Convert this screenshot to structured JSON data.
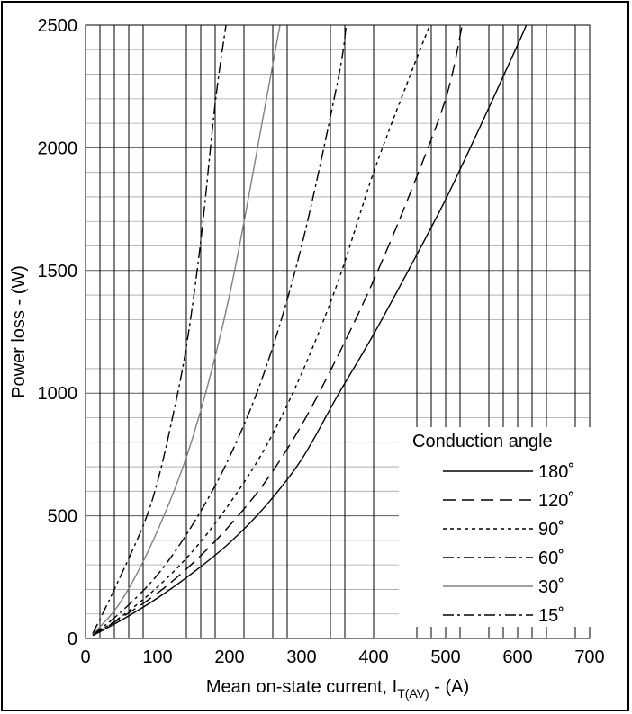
{
  "chart_data": {
    "type": "line",
    "xlabel_main": "Mean on-state current, I",
    "xlabel_sub": "T(AV)",
    "xlabel_unit": " - (A)",
    "ylabel": "Power loss - (W)",
    "xlim": [
      0,
      700
    ],
    "ylim": [
      0,
      2500
    ],
    "xticks": [
      0,
      100,
      200,
      300,
      400,
      500,
      600,
      700
    ],
    "yticks": [
      0,
      500,
      1000,
      1500,
      2000,
      2500
    ],
    "x_gridlines": [
      20,
      40,
      60,
      80,
      140,
      160,
      180,
      220,
      260,
      280,
      340,
      360,
      400,
      460,
      480,
      500,
      520,
      560,
      580,
      600,
      620,
      640,
      680
    ],
    "y_gridlines": [
      100,
      200,
      300,
      400,
      600,
      700,
      800,
      900,
      1100,
      1200,
      1300,
      1400,
      1600,
      1700,
      1800,
      1900,
      2100,
      2200,
      2300,
      2400
    ],
    "grid": true,
    "legend_title": "Conduction angle",
    "legend_position": "lower-right",
    "series": [
      {
        "name": "180˚",
        "style": "solid",
        "color": "#000000",
        "x": [
          10,
          50,
          100,
          150,
          200,
          250,
          300,
          350,
          400,
          450,
          500,
          550,
          600,
          612
        ],
        "y": [
          12,
          75,
          165,
          270,
          390,
          540,
          730,
          990,
          1240,
          1510,
          1790,
          2100,
          2420,
          2500
        ]
      },
      {
        "name": "120˚",
        "style": "longdash",
        "color": "#000000",
        "x": [
          10,
          50,
          100,
          150,
          200,
          250,
          300,
          350,
          400,
          450,
          500,
          523
        ],
        "y": [
          13,
          85,
          185,
          310,
          460,
          640,
          870,
          1150,
          1460,
          1810,
          2200,
          2500
        ]
      },
      {
        "name": "90˚",
        "style": "dotted",
        "color": "#000000",
        "x": [
          10,
          50,
          100,
          150,
          200,
          250,
          300,
          350,
          400,
          450,
          478
        ],
        "y": [
          14,
          90,
          210,
          360,
          550,
          780,
          1080,
          1450,
          1900,
          2290,
          2500
        ]
      },
      {
        "name": "60˚",
        "style": "dashdot",
        "color": "#000000",
        "x": [
          10,
          50,
          100,
          150,
          200,
          250,
          300,
          350,
          362
        ],
        "y": [
          15,
          110,
          260,
          470,
          740,
          1100,
          1600,
          2270,
          2500
        ]
      },
      {
        "name": "30˚",
        "style": "solid",
        "color": "#808080",
        "x": [
          10,
          50,
          100,
          150,
          200,
          250,
          270
        ],
        "y": [
          17,
          155,
          440,
          830,
          1400,
          2180,
          2500
        ]
      },
      {
        "name": "15˚",
        "style": "dashdot",
        "color": "#000000",
        "x": [
          10,
          40,
          80,
          100,
          120,
          140,
          160,
          180,
          195
        ],
        "y": [
          20,
          200,
          460,
          640,
          890,
          1190,
          1620,
          2180,
          2500
        ]
      }
    ]
  }
}
